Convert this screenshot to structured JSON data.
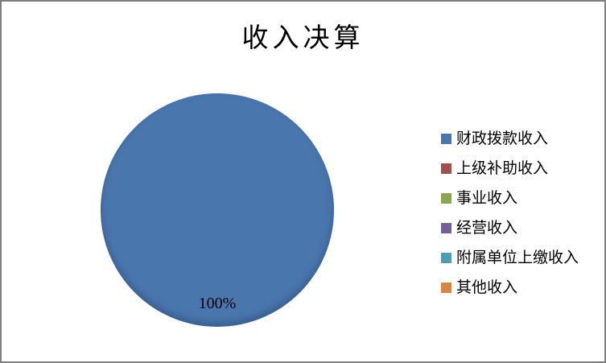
{
  "frame": {
    "border_color": "#7f7f7f",
    "background": "#ffffff"
  },
  "chart_data": {
    "type": "pie",
    "title": "收入决算",
    "categories": [
      "财政拨款收入",
      "上级补助收入",
      "事业收入",
      "经营收入",
      "附属单位上缴收入",
      "其他收入"
    ],
    "values": [
      100,
      0,
      0,
      0,
      0,
      0
    ],
    "unit": "%",
    "slice_label": "100%",
    "colors": [
      "#4A76AE",
      "#A0504B",
      "#8CA551",
      "#72609B",
      "#4A9FB5",
      "#D98640"
    ],
    "legend_position": "right",
    "grid": false
  }
}
